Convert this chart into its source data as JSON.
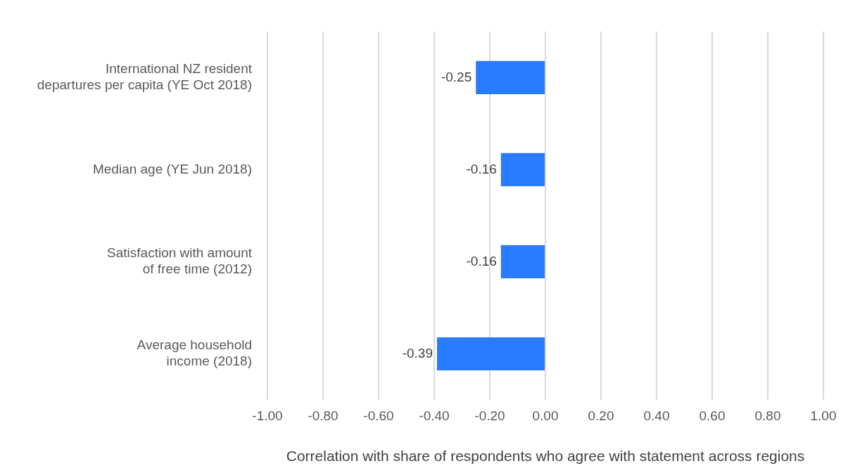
{
  "chart_data": {
    "type": "bar",
    "orientation": "horizontal",
    "xlabel": "Correlation with share of respondents who agree with statement across regions",
    "categories": [
      "International NZ resident departures per capita (YE Oct 2018)",
      "Median age (YE Jun 2018)",
      "Satisfaction with amount of free time (2012)",
      "Average household income (2018)"
    ],
    "values": [
      -0.25,
      -0.16,
      -0.16,
      -0.39
    ],
    "color": "#297bff",
    "data_labels": true,
    "xlim": [
      -1,
      1
    ],
    "xticks": [
      {
        "value": -1,
        "label": "-1.00"
      },
      {
        "value": -0.8,
        "label": "-0.80"
      },
      {
        "value": -0.6,
        "label": "-0.60"
      },
      {
        "value": -0.4,
        "label": "-0.40"
      },
      {
        "value": -0.2,
        "label": "-0.20"
      },
      {
        "value": 0,
        "label": "0.00"
      },
      {
        "value": 0.2,
        "label": "0.20"
      },
      {
        "value": 0.4,
        "label": "0.40"
      },
      {
        "value": 0.6,
        "label": "0.60"
      },
      {
        "value": 0.8,
        "label": "0.80"
      },
      {
        "value": 1,
        "label": "1.00"
      }
    ],
    "grid": "x"
  }
}
